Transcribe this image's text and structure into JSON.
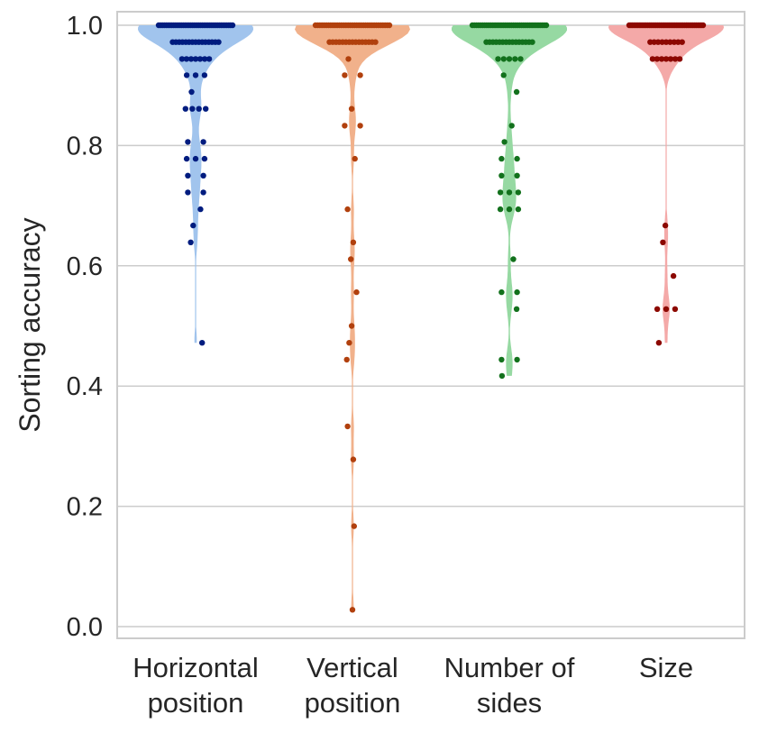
{
  "chart_data": {
    "type": "violin",
    "ylabel": "Sorting accuracy",
    "ylim": [
      -0.02,
      1.02
    ],
    "yticks": [
      {
        "value": 0.0,
        "label": "0.0"
      },
      {
        "value": 0.2,
        "label": "0.2"
      },
      {
        "value": 0.4,
        "label": "0.4"
      },
      {
        "value": 0.6,
        "label": "0.6"
      },
      {
        "value": 0.8,
        "label": "0.8"
      },
      {
        "value": 1.0,
        "label": "1.0"
      }
    ],
    "grid": "horizontal",
    "categories": [
      {
        "lines": [
          "Horizontal",
          "position"
        ]
      },
      {
        "lines": [
          "Vertical",
          "position"
        ]
      },
      {
        "lines": [
          "Number of",
          "sides"
        ]
      },
      {
        "lines": [
          "Size"
        ]
      }
    ],
    "series": [
      {
        "violin_color": "#a1c4ed",
        "point_color": "#001c7f",
        "min": 0.472,
        "values": [
          1,
          1,
          1,
          1,
          1,
          1,
          1,
          1,
          1,
          1,
          1,
          1,
          1,
          1,
          1,
          1,
          1,
          1,
          1,
          1,
          1,
          1,
          1,
          1,
          1,
          1,
          1,
          1,
          1,
          1,
          1,
          1,
          1,
          1,
          1,
          1,
          1,
          1,
          1,
          1,
          0.972,
          0.972,
          0.972,
          0.972,
          0.972,
          0.972,
          0.972,
          0.972,
          0.972,
          0.972,
          0.972,
          0.972,
          0.972,
          0.972,
          0.972,
          0.944,
          0.944,
          0.944,
          0.944,
          0.944,
          0.944,
          0.944,
          0.917,
          0.917,
          0.917,
          0.889,
          0.861,
          0.861,
          0.861,
          0.861,
          0.806,
          0.806,
          0.778,
          0.778,
          0.778,
          0.75,
          0.75,
          0.722,
          0.722,
          0.694,
          0.667,
          0.639,
          0.472
        ]
      },
      {
        "violin_color": "#f1b18b",
        "point_color": "#b1400d",
        "min": 0.028,
        "values": [
          1,
          1,
          1,
          1,
          1,
          1,
          1,
          1,
          1,
          1,
          1,
          1,
          1,
          1,
          1,
          1,
          1,
          1,
          1,
          1,
          1,
          1,
          1,
          1,
          1,
          1,
          1,
          1,
          1,
          1,
          1,
          1,
          1,
          1,
          1,
          0.972,
          0.972,
          0.972,
          0.972,
          0.972,
          0.972,
          0.972,
          0.972,
          0.972,
          0.972,
          0.972,
          0.972,
          0.972,
          0.972,
          0.972,
          0.944,
          0.917,
          0.917,
          0.861,
          0.833,
          0.833,
          0.778,
          0.694,
          0.639,
          0.611,
          0.556,
          0.5,
          0.472,
          0.444,
          0.333,
          0.278,
          0.167,
          0.028
        ]
      },
      {
        "violin_color": "#96d9a2",
        "point_color": "#12711c",
        "min": 0.417,
        "values": [
          1,
          1,
          1,
          1,
          1,
          1,
          1,
          1,
          1,
          1,
          1,
          1,
          1,
          1,
          1,
          1,
          1,
          1,
          1,
          1,
          1,
          1,
          1,
          1,
          1,
          1,
          1,
          1,
          1,
          1,
          1,
          1,
          1,
          1,
          1,
          1,
          1,
          0.972,
          0.972,
          0.972,
          0.972,
          0.972,
          0.972,
          0.972,
          0.972,
          0.972,
          0.972,
          0.972,
          0.972,
          0.972,
          0.972,
          0.972,
          0.944,
          0.944,
          0.944,
          0.944,
          0.944,
          0.917,
          0.889,
          0.833,
          0.806,
          0.778,
          0.778,
          0.75,
          0.75,
          0.722,
          0.722,
          0.722,
          0.694,
          0.694,
          0.694,
          0.611,
          0.556,
          0.556,
          0.528,
          0.444,
          0.444,
          0.417
        ]
      },
      {
        "violin_color": "#f4a9a8",
        "point_color": "#8c0800",
        "min": 0.472,
        "values": [
          1,
          1,
          1,
          1,
          1,
          1,
          1,
          1,
          1,
          1,
          1,
          1,
          1,
          1,
          1,
          1,
          1,
          1,
          1,
          1,
          1,
          1,
          1,
          1,
          1,
          1,
          1,
          1,
          1,
          1,
          1,
          1,
          1,
          1,
          1,
          1,
          1,
          1,
          1,
          1,
          1,
          1,
          1,
          1,
          1,
          0.972,
          0.972,
          0.972,
          0.972,
          0.972,
          0.972,
          0.972,
          0.972,
          0.972,
          0.944,
          0.944,
          0.944,
          0.944,
          0.944,
          0.944,
          0.944,
          0.667,
          0.639,
          0.583,
          0.528,
          0.528,
          0.528,
          0.472
        ]
      }
    ]
  }
}
